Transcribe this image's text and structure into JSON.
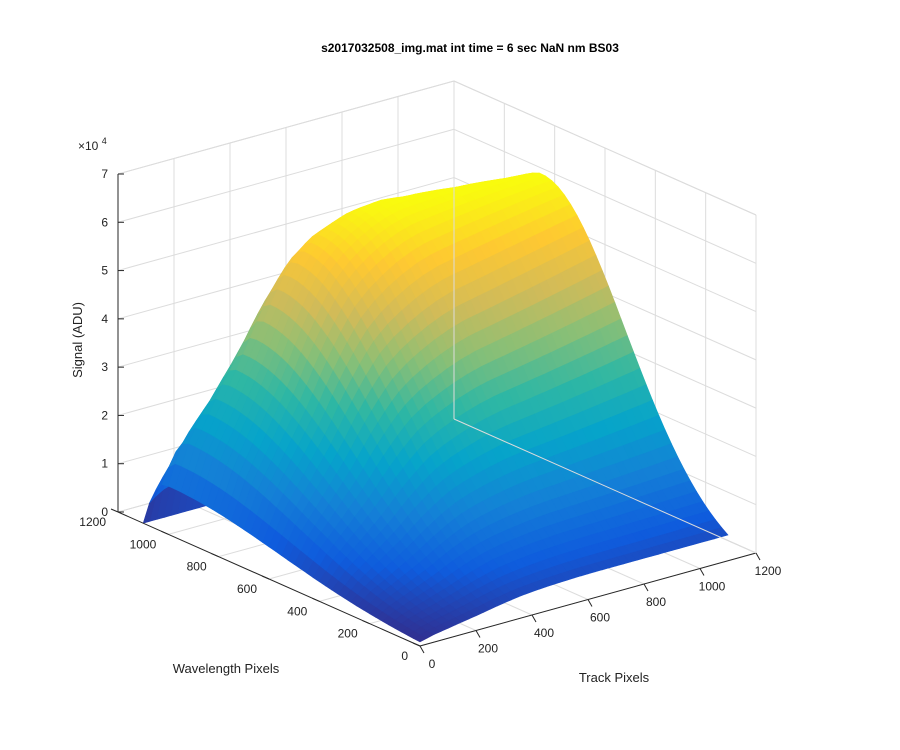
{
  "chart_data": {
    "type": "surface",
    "title": "s2017032508_img.mat int time = 6 sec  NaN nm BS03",
    "xlabel": "Track Pixels",
    "ylabel": "Wavelength Pixels",
    "zlabel": "Signal (ADU)",
    "xlim": [
      0,
      1200
    ],
    "ylim": [
      0,
      1200
    ],
    "zlim": [
      0,
      70000
    ],
    "z_exponent_label": "×10",
    "z_exponent_power": "4",
    "x_ticks": [
      "0",
      "200",
      "400",
      "600",
      "800",
      "1000",
      "1200"
    ],
    "y_ticks": [
      "0",
      "200",
      "400",
      "600",
      "800",
      "1000",
      "1200"
    ],
    "z_ticks": [
      "0",
      "1",
      "2",
      "3",
      "4",
      "5",
      "6",
      "7"
    ],
    "grid": true,
    "colormap": "parula",
    "colormap_colors": [
      "#352a87",
      "#0f5cdd",
      "#1481d6",
      "#06a4ca",
      "#2eb7a4",
      "#87bf77",
      "#d1bb59",
      "#fec832",
      "#f9fb0e"
    ],
    "track_extent": [
      0,
      1100
    ],
    "wavelength_extent": [
      0,
      1100
    ],
    "peak_signal": 63000,
    "ridge_peaks_wavelength": [
      1010,
      975,
      950,
      930,
      915,
      900,
      890,
      880,
      870,
      860,
      850,
      840,
      830,
      820,
      810,
      800,
      790,
      780,
      770,
      760,
      750,
      740
    ],
    "ridge_peak_signal": [
      10000,
      19000,
      25000,
      31000,
      37000,
      44000,
      50000,
      55000,
      58000,
      60000,
      61500,
      62500,
      63000,
      63000,
      63000,
      63000,
      63000,
      63000,
      63000,
      63000,
      63000,
      63000
    ]
  }
}
